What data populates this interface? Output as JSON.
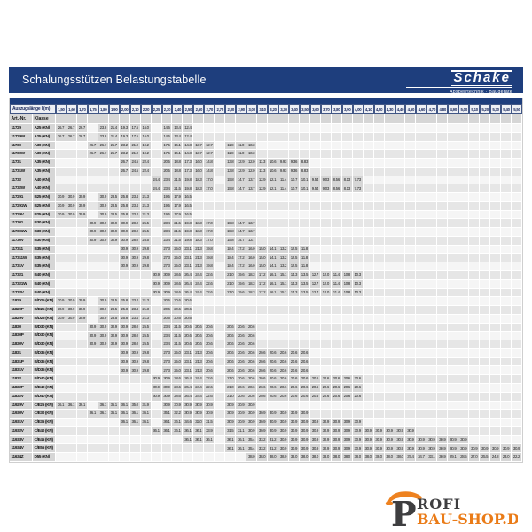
{
  "header": {
    "title": "Schalungsstützen Belastungstabelle",
    "brand": "Schake",
    "brand_tagline": "Absperrtechnik · Baugeräte"
  },
  "table": {
    "corner_label": "Auszugslänge l (m)",
    "col1_label": "Art.-Nr.",
    "col2_label": "Klasse",
    "columns": [
      "1,50",
      "1,60",
      "1,70",
      "1,75",
      "1,80",
      "1,90",
      "2,00",
      "2,10",
      "2,20",
      "2,25",
      "2,30",
      "2,40",
      "2,50",
      "2,60",
      "2,70",
      "2,75",
      "2,80",
      "2,90",
      "3,00",
      "3,10",
      "3,20",
      "3,30",
      "3,40",
      "3,50",
      "3,60",
      "3,70",
      "3,80",
      "3,90",
      "4,00",
      "4,10",
      "4,20",
      "4,30",
      "4,40",
      "4,50",
      "4,60",
      "4,70",
      "4,80",
      "4,90",
      "5,00",
      "5,10",
      "5,20",
      "5,30",
      "5,40",
      "5,50"
    ],
    "rows": [
      {
        "art": "11729",
        "klasse": "A25 (KN)",
        "cls": "A25"
      },
      {
        "art": "11729W",
        "klasse": "A25 (KN)",
        "cls": "A25"
      },
      {
        "art": "11730",
        "klasse": "A30 (KN)",
        "cls": "A30"
      },
      {
        "art": "11730W",
        "klasse": "A30 (KN)",
        "cls": "A30"
      },
      {
        "art": "11731",
        "klasse": "A35 (KN)",
        "cls": "A35"
      },
      {
        "art": "11731W",
        "klasse": "A35 (KN)",
        "cls": "A35"
      },
      {
        "art": "11732",
        "klasse": "A40 (KN)",
        "cls": "A40"
      },
      {
        "art": "11732W",
        "klasse": "A40 (KN)",
        "cls": "A40"
      },
      {
        "art": "117291",
        "klasse": "B25 (KN)",
        "cls": "B25"
      },
      {
        "art": "117291W",
        "klasse": "B25 (KN)",
        "cls": "B25"
      },
      {
        "art": "11729V",
        "klasse": "B25 (KN)",
        "cls": "B25"
      },
      {
        "art": "117301",
        "klasse": "B30 (KN)",
        "cls": "B30"
      },
      {
        "art": "117301W",
        "klasse": "B30 (KN)",
        "cls": "B30"
      },
      {
        "art": "11730V",
        "klasse": "B30 (KN)",
        "cls": "B30"
      },
      {
        "art": "117311",
        "klasse": "B35 (KN)",
        "cls": "B35"
      },
      {
        "art": "117311W",
        "klasse": "B35 (KN)",
        "cls": "B35"
      },
      {
        "art": "11731V",
        "klasse": "B35 (KN)",
        "cls": "B35"
      },
      {
        "art": "117321",
        "klasse": "B40 (KN)",
        "cls": "B40"
      },
      {
        "art": "117321W",
        "klasse": "B40 (KN)",
        "cls": "B40"
      },
      {
        "art": "11732V",
        "klasse": "B40 (KN)",
        "cls": "B40"
      },
      {
        "art": "11829",
        "klasse": "B/D25 (KN)",
        "cls": "BD25"
      },
      {
        "art": "11829P",
        "klasse": "B/D25 (KN)",
        "cls": "BD25"
      },
      {
        "art": "11829V",
        "klasse": "B/D25 (KN)",
        "cls": "BD25"
      },
      {
        "art": "11830",
        "klasse": "B/D30 (KN)",
        "cls": "BD30"
      },
      {
        "art": "11830P",
        "klasse": "B/D30 (KN)",
        "cls": "BD30"
      },
      {
        "art": "11830V",
        "klasse": "B/D30 (KN)",
        "cls": "BD30"
      },
      {
        "art": "11831",
        "klasse": "B/D35 (KN)",
        "cls": "BD35"
      },
      {
        "art": "11831P",
        "klasse": "B/D35 (KN)",
        "cls": "BD35"
      },
      {
        "art": "11831V",
        "klasse": "B/D35 (KN)",
        "cls": "BD35"
      },
      {
        "art": "11832",
        "klasse": "B/D40 (KN)",
        "cls": "BD40"
      },
      {
        "art": "11832P",
        "klasse": "B/D40 (KN)",
        "cls": "BD40"
      },
      {
        "art": "11832V",
        "klasse": "B/D40 (KN)",
        "cls": "BD40"
      },
      {
        "art": "11929V",
        "klasse": "C/E25 (KN)",
        "cls": "CE25"
      },
      {
        "art": "11930V",
        "klasse": "C/E30 (KN)",
        "cls": "CE30"
      },
      {
        "art": "11931V",
        "klasse": "C/E35 (KN)",
        "cls": "CE35"
      },
      {
        "art": "11932V",
        "klasse": "C/E40 (KN)",
        "cls": "CE40"
      },
      {
        "art": "11933V",
        "klasse": "C/E45 (KN)",
        "cls": "CE45"
      },
      {
        "art": "11934V",
        "klasse": "C/E55 (KN)",
        "cls": "CE55"
      },
      {
        "art": "11634Z",
        "klasse": "D55 (KN)",
        "cls": "D55"
      }
    ],
    "classes": {
      "A25": {
        "1.50": "26.7",
        "1.60": "26.7",
        "1.70": "26.7",
        "1.80": "23.8",
        "1.90": "21.4",
        "2.00": "19.3",
        "2.10": "17.5",
        "2.20": "16.0",
        "2.30": "14.6",
        "2.40": "13.4",
        "2.50": "12.4"
      },
      "A30": {
        "1.75": "26.7",
        "1.80": "26.7",
        "1.90": "25.7",
        "2.00": "23.2",
        "2.10": "21.0",
        "2.20": "19.2",
        "2.30": "17.5",
        "2.40": "16.1",
        "2.50": "14.8",
        "2.60": "13.7",
        "2.70": "12.7",
        "2.80": "11.8",
        "2.90": "11.0",
        "3.00": "10.3"
      },
      "A35": {
        "2.00": "26.7",
        "2.10": "24.5",
        "2.20": "22.4",
        "2.30": "20.5",
        "2.40": "18.8",
        "2.50": "17.3",
        "2.60": "16.0",
        "2.70": "14.8",
        "2.80": "13.8",
        "2.90": "12.9",
        "3.00": "12.0",
        "3.10": "11.3",
        "3.20": "10.6",
        "3.30": "9.93",
        "3.40": "9.36",
        "3.50": "8.83"
      },
      "A40": {
        "2.25": "24.4",
        "2.30": "23.4",
        "2.40": "21.5",
        "2.50": "19.8",
        "2.60": "18.3",
        "2.70": "17.0",
        "2.80": "15.8",
        "2.90": "14.7",
        "3.00": "13.7",
        "3.10": "12.9",
        "3.20": "12.1",
        "3.30": "11.4",
        "3.40": "10.7",
        "3.50": "10.1",
        "3.60": "9.54",
        "3.70": "9.03",
        "3.80": "8.56",
        "3.90": "8.13",
        "4.00": "7.73"
      },
      "B25": {
        "1.50": "30.9",
        "1.60": "30.9",
        "1.70": "30.9",
        "1.80": "30.9",
        "1.90": "28.5",
        "2.00": "25.8",
        "2.10": "23.4",
        "2.20": "21.3",
        "2.30": "19.5",
        "2.40": "17.9",
        "2.50": "16.5"
      },
      "B30": {
        "1.75": "30.9",
        "1.80": "30.9",
        "1.90": "30.9",
        "2.00": "30.9",
        "2.10": "28.0",
        "2.20": "25.5",
        "2.30": "23.4",
        "2.40": "21.5",
        "2.50": "19.8",
        "2.60": "18.3",
        "2.70": "17.0",
        "2.80": "15.8",
        "2.90": "14.7",
        "3.00": "13.7"
      },
      "B35": {
        "2.00": "30.9",
        "2.10": "30.9",
        "2.20": "29.8",
        "2.30": "27.3",
        "2.40": "25.0",
        "2.50": "23.1",
        "2.60": "21.3",
        "2.70": "19.8",
        "2.80": "18.4",
        "2.90": "17.2",
        "3.00": "16.0",
        "3.10": "15.0",
        "3.20": "14.1",
        "3.30": "13.2",
        "3.40": "12.5",
        "3.50": "11.8"
      },
      "B40": {
        "2.25": "30.9",
        "2.30": "30.9",
        "2.40": "28.6",
        "2.50": "26.4",
        "2.60": "24.4",
        "2.70": "22.6",
        "2.80": "21.0",
        "2.90": "19.6",
        "3.00": "18.3",
        "3.10": "17.2",
        "3.20": "16.1",
        "3.30": "15.1",
        "3.40": "14.3",
        "3.50": "13.5",
        "3.60": "12.7",
        "3.70": "12.0",
        "3.80": "11.4",
        "3.90": "10.8",
        "4.00": "10.3"
      },
      "BD25": {
        "1.50": "30.9",
        "1.60": "30.9",
        "1.70": "30.9",
        "1.80": "30.9",
        "1.90": "28.5",
        "2.00": "25.8",
        "2.10": "23.4",
        "2.20": "21.3",
        "2.30": "20.6",
        "2.40": "20.6",
        "2.50": "20.6"
      },
      "BD30": {
        "1.75": "30.9",
        "1.80": "30.9",
        "1.90": "30.9",
        "2.00": "30.9",
        "2.10": "28.0",
        "2.20": "25.5",
        "2.30": "23.4",
        "2.40": "21.5",
        "2.50": "20.6",
        "2.60": "20.6",
        "2.70": "20.6",
        "2.80": "20.6",
        "2.90": "20.6",
        "3.00": "20.6"
      },
      "BD35": {
        "2.00": "30.9",
        "2.10": "30.9",
        "2.20": "29.8",
        "2.30": "27.3",
        "2.40": "25.0",
        "2.50": "23.1",
        "2.60": "21.3",
        "2.70": "20.6",
        "2.80": "20.6",
        "2.90": "20.6",
        "3.00": "20.6",
        "3.10": "20.6",
        "3.20": "20.6",
        "3.30": "20.6",
        "3.40": "20.6",
        "3.50": "20.6"
      },
      "BD40": {
        "2.25": "30.9",
        "2.30": "30.9",
        "2.40": "28.6",
        "2.50": "26.4",
        "2.60": "24.4",
        "2.70": "22.6",
        "2.80": "21.0",
        "2.90": "20.6",
        "3.00": "20.6",
        "3.10": "20.6",
        "3.20": "20.6",
        "3.30": "20.6",
        "3.40": "20.6",
        "3.50": "20.6",
        "3.60": "20.6",
        "3.70": "20.6",
        "3.80": "20.6",
        "3.90": "20.6",
        "4.00": "20.6"
      },
      "CE25": {
        "1.50": "36.1",
        "1.60": "36.1",
        "1.70": "36.1",
        "1.80": "36.1",
        "1.90": "36.1",
        "2.00": "36.1",
        "2.10": "35.0",
        "2.20": "31.9",
        "2.30": "30.9",
        "2.40": "30.9",
        "2.50": "30.9",
        "2.60": "30.9",
        "2.70": "30.9",
        "2.80": "30.9",
        "2.90": "30.9",
        "3.00": "30.9"
      },
      "CE30": {
        "1.75": "36.1",
        "1.80": "36.1",
        "1.90": "36.1",
        "2.00": "36.1",
        "2.10": "36.1",
        "2.20": "36.1",
        "2.30": "35.1",
        "2.40": "32.2",
        "2.50": "30.9",
        "2.60": "30.9",
        "2.70": "30.9",
        "2.80": "30.9",
        "2.90": "30.9",
        "3.00": "30.9",
        "3.10": "30.9",
        "3.20": "30.9",
        "3.30": "30.9",
        "3.40": "30.9",
        "3.50": "30.9"
      },
      "CE35": {
        "2.00": "36.1",
        "2.10": "36.1",
        "2.20": "36.1",
        "2.30": "36.1",
        "2.40": "36.1",
        "2.50": "34.6",
        "2.60": "32.0",
        "2.70": "31.5",
        "2.80": "30.9",
        "2.90": "30.9",
        "3.00": "30.9",
        "3.10": "30.9",
        "3.20": "30.9",
        "3.30": "30.9",
        "3.40": "30.9",
        "3.50": "30.9",
        "3.60": "30.9",
        "3.70": "30.9",
        "3.80": "30.9",
        "3.90": "30.9",
        "4.00": "30.9"
      },
      "CE40": {
        "2.25": "36.1",
        "2.30": "36.1",
        "2.40": "36.1",
        "2.50": "36.1",
        "2.60": "36.1",
        "2.70": "33.9",
        "2.80": "31.5",
        "2.90": "31.1",
        "3.00": "30.9",
        "3.10": "30.9",
        "3.20": "30.9",
        "3.30": "30.9",
        "3.40": "30.9",
        "3.50": "30.9",
        "3.60": "30.9",
        "3.70": "30.9",
        "3.80": "30.9",
        "3.90": "30.9",
        "4.00": "30.9",
        "4.10": "30.9",
        "4.20": "30.9",
        "4.30": "30.9",
        "4.40": "30.9",
        "4.50": "30.9"
      },
      "CE45": {
        "2.50": "36.1",
        "2.60": "36.1",
        "2.70": "36.1",
        "2.80": "36.1",
        "2.90": "36.1",
        "3.00": "35.4",
        "3.10": "33.2",
        "3.20": "31.2",
        "3.30": "30.9",
        "3.40": "30.9",
        "3.50": "30.9",
        "3.60": "30.9",
        "3.70": "30.9",
        "3.80": "30.9",
        "3.90": "30.9",
        "4.00": "30.9",
        "4.10": "30.9",
        "4.20": "30.9",
        "4.30": "30.9",
        "4.40": "30.9",
        "4.50": "30.9",
        "4.60": "30.9",
        "4.70": "30.9",
        "4.80": "30.9",
        "4.90": "30.9",
        "5.00": "30.9"
      },
      "CE55": {
        "2.80": "36.1",
        "2.90": "36.1",
        "3.00": "35.4",
        "3.10": "33.2",
        "3.20": "31.2",
        "3.30": "30.9",
        "3.40": "30.9",
        "3.50": "30.9",
        "3.60": "30.9",
        "3.70": "30.9",
        "3.80": "30.9",
        "3.90": "30.9",
        "4.00": "30.9",
        "4.10": "30.9",
        "4.20": "30.9",
        "4.30": "30.9",
        "4.40": "30.9",
        "4.50": "30.9",
        "4.60": "30.9",
        "4.70": "30.9",
        "4.80": "30.9",
        "4.90": "30.9",
        "5.00": "30.9",
        "5.10": "30.9",
        "5.20": "30.9",
        "5.30": "30.9",
        "5.40": "30.9",
        "5.50": "30.9"
      },
      "D55": {
        "3.00": "38.0",
        "3.10": "38.0",
        "3.20": "38.0",
        "3.30": "38.0",
        "3.40": "38.0",
        "3.50": "38.0",
        "3.60": "38.0",
        "3.70": "38.0",
        "3.80": "38.0",
        "3.90": "38.0",
        "4.00": "38.0",
        "4.10": "38.0",
        "4.20": "38.0",
        "4.30": "38.0",
        "4.40": "38.0",
        "4.50": "37.4",
        "4.60": "34.7",
        "4.70": "33.1",
        "4.80": "30.9",
        "4.90": "29.1",
        "5.00": "28.5",
        "5.10": "27.0",
        "5.20": "25.5",
        "5.30": "24.8",
        "5.40": "23.0",
        "5.50": "22.2"
      }
    }
  },
  "footer_logo": {
    "p": "P",
    "rofi": "ROFI",
    "shop": "BAU-SHOP.DE",
    "orange": "#ea7b17",
    "dark": "#3e3e40"
  },
  "colors": {
    "header_blue": "#1e3e7d",
    "cell_gray": "#d6d6d6"
  }
}
